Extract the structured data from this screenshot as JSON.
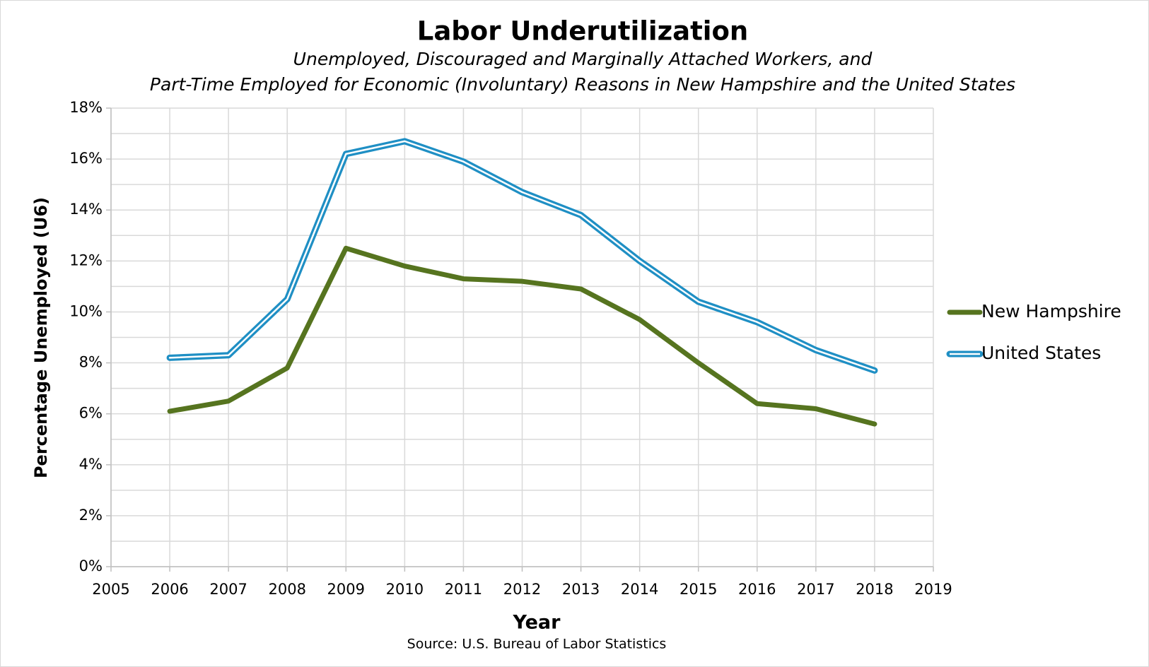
{
  "chart_data": {
    "type": "line",
    "title": "Labor Underutilization",
    "subtitle": [
      "Unemployed, Discouraged and Marginally Attached Workers, and",
      "Part-Time Employed for Economic (Involuntary) Reasons in New Hampshire and the United States"
    ],
    "x_label": "Year",
    "y_label": "Percentage Unemployed (U6)",
    "source": "Source: U.S. Bureau of Labor Statistics",
    "x": [
      2006,
      2007,
      2008,
      2009,
      2010,
      2011,
      2012,
      2013,
      2014,
      2015,
      2016,
      2017,
      2018
    ],
    "series": [
      {
        "name": "New Hampshire",
        "color": "#56741f",
        "line_style": "solid",
        "values": [
          6.1,
          6.5,
          7.8,
          12.5,
          11.8,
          11.3,
          11.2,
          10.9,
          9.7,
          8.0,
          6.4,
          6.2,
          5.6
        ]
      },
      {
        "name": "United States",
        "color": "#1f8fc4",
        "line_style": "double",
        "values": [
          8.2,
          8.3,
          10.5,
          16.2,
          16.7,
          15.9,
          14.7,
          13.8,
          12.0,
          10.4,
          9.6,
          8.5,
          7.7
        ]
      }
    ],
    "xlim": [
      2005,
      2019
    ],
    "xticks": [
      2005,
      2006,
      2007,
      2008,
      2009,
      2010,
      2011,
      2012,
      2013,
      2014,
      2015,
      2016,
      2017,
      2018,
      2019
    ],
    "ylim": [
      0,
      18
    ],
    "yticks": [
      {
        "value": 0,
        "label": "0%"
      },
      {
        "value": 2,
        "label": "2%"
      },
      {
        "value": 4,
        "label": "4%"
      },
      {
        "value": 6,
        "label": "6%"
      },
      {
        "value": 8,
        "label": "8%"
      },
      {
        "value": 10,
        "label": "10%"
      },
      {
        "value": 12,
        "label": "12%"
      },
      {
        "value": 14,
        "label": "14%"
      },
      {
        "value": 16,
        "label": "16%"
      },
      {
        "value": 18,
        "label": "18%"
      }
    ],
    "y_minor_ticks": [
      1,
      3,
      5,
      7,
      9,
      11,
      13,
      15,
      17
    ],
    "grid": true,
    "legend": "right"
  }
}
